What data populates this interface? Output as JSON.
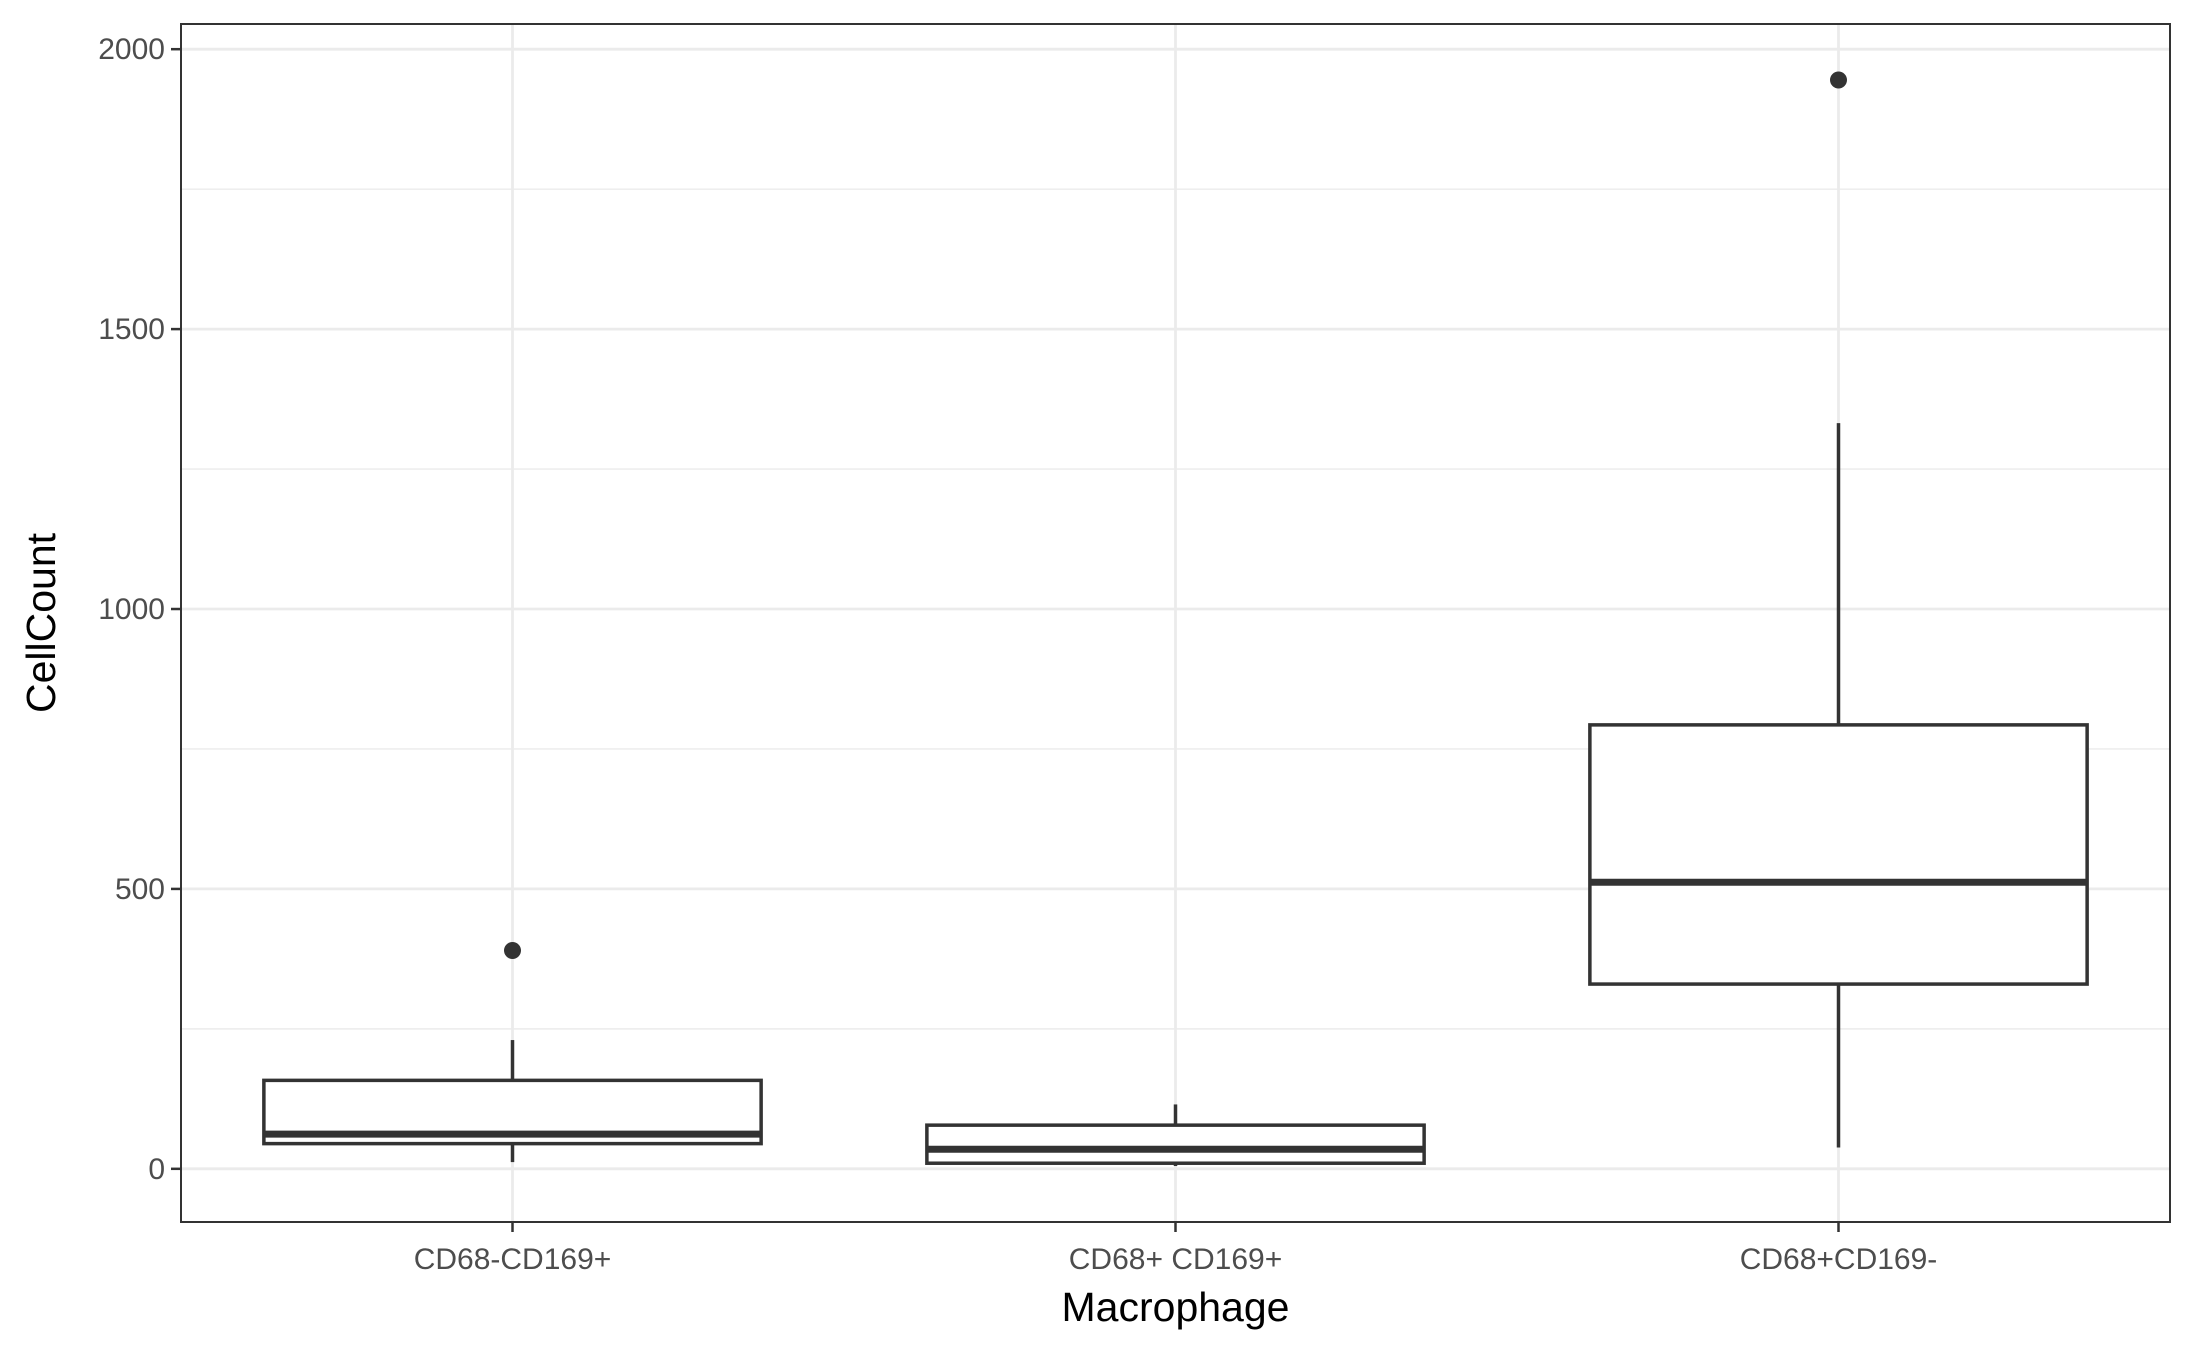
{
  "chart_data": {
    "type": "boxplot",
    "xlabel": "Macrophage",
    "ylabel": "CellCount",
    "ylim": [
      -95,
      2045
    ],
    "y_ticks": [
      0,
      500,
      1000,
      1500,
      2000
    ],
    "y_tick_labels": [
      "0",
      "500",
      "1000",
      "1500",
      "2000"
    ],
    "grid": true,
    "categories": [
      "CD68-CD169+",
      "CD68+ CD169+",
      "CD68+CD169-"
    ],
    "boxes": [
      {
        "category": "CD68-CD169+",
        "whisker_low": 12,
        "q1": 45,
        "median": 62,
        "q3": 158,
        "whisker_high": 230,
        "outliers": [
          390
        ]
      },
      {
        "category": "CD68+ CD169+",
        "whisker_low": 5,
        "q1": 10,
        "median": 35,
        "q3": 78,
        "whisker_high": 115,
        "outliers": []
      },
      {
        "category": "CD68+CD169-",
        "whisker_low": 38,
        "q1": 330,
        "median": 512,
        "q3": 793,
        "whisker_high": 1332,
        "outliers": [
          1945
        ]
      }
    ],
    "colors": {
      "box_stroke": "#333333",
      "box_fill": "#ffffff",
      "grid": "#ebebeb",
      "panel_border": "#333333"
    }
  }
}
